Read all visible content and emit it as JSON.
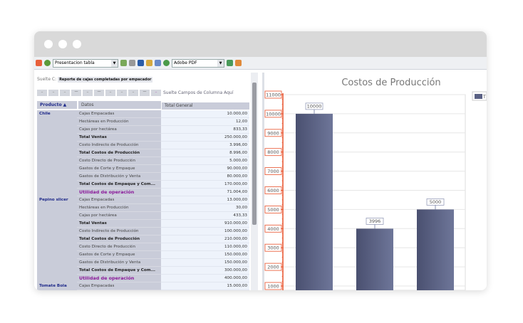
{
  "toolbar": {
    "report_select": "Presentacion tabla",
    "export_select": "Adobe PDF"
  },
  "pivot": {
    "filter_label": "Suelte C:",
    "filter_value": "Reporte de cajas completadas por empacador",
    "column_hint": "Suelte Campos de Columna Aquí",
    "headers": {
      "producto": "Producto ▲",
      "datos": "Datos",
      "total": "Total General"
    },
    "groups": [
      {
        "name": "Chile",
        "rows": [
          [
            "Cajas Empacadas",
            "10.000,00",
            ""
          ],
          [
            "Hectáreas en Producción",
            "12,00",
            ""
          ],
          [
            "Cajas por hectárea",
            "833,33",
            ""
          ],
          [
            "Total Ventas",
            "250.000,00",
            "bold"
          ],
          [
            "Costo Indirecto de Producción",
            "3.996,00",
            ""
          ],
          [
            "Total Costos de Producción",
            "8.996,00",
            "bold"
          ],
          [
            "Costo Directo de Producción",
            "5.000,00",
            ""
          ],
          [
            "Gastos de Corte y Empaque",
            "90.000,00",
            ""
          ],
          [
            "Gastos de Distribución y Venta",
            "80.000,00",
            ""
          ],
          [
            "Total Costos de Empaque y Com...",
            "170.000,00",
            "bold"
          ],
          [
            "Utilidad de operación",
            "71.004,00",
            "util"
          ]
        ]
      },
      {
        "name": "Pepino slicer",
        "rows": [
          [
            "Cajas Empacadas",
            "13.000,00",
            ""
          ],
          [
            "Hectáreas en Producción",
            "30,00",
            ""
          ],
          [
            "Cajas por hectárea",
            "433,33",
            ""
          ],
          [
            "Total Ventas",
            "910.000,00",
            "bold"
          ],
          [
            "Costo Indirecto de Producción",
            "100.000,00",
            ""
          ],
          [
            "Total Costos de Producción",
            "210.000,00",
            "bold"
          ],
          [
            "Costo Directo de Producción",
            "110.000,00",
            ""
          ],
          [
            "Gastos de Corte y Empaque",
            "150.000,00",
            ""
          ],
          [
            "Gastos de Distribución y Venta",
            "150.000,00",
            ""
          ],
          [
            "Total Costos de Empaque y Com...",
            "300.000,00",
            "bold"
          ],
          [
            "Utilidad de operación",
            "400.000,00",
            "util"
          ]
        ]
      },
      {
        "name": "Tomate Bola",
        "rows": [
          [
            "Cajas Empacadas",
            "15.000,00",
            ""
          ]
        ]
      }
    ]
  },
  "chart_data": {
    "type": "bar",
    "title": "Costos de Producción",
    "values": [
      10000,
      3996,
      5000
    ],
    "data_labels": [
      "10000",
      "3996",
      "5000"
    ],
    "yticks": [
      "1000",
      "2000",
      "3000",
      "4000",
      "5000",
      "6000",
      "7000",
      "8000",
      "9000",
      "10000",
      "11000"
    ],
    "ylim": [
      1000,
      11000
    ],
    "grid": true,
    "legend": "top-right",
    "legend_text": "T",
    "bar_color": "#5a6184",
    "axis_color": "#e8502a"
  }
}
